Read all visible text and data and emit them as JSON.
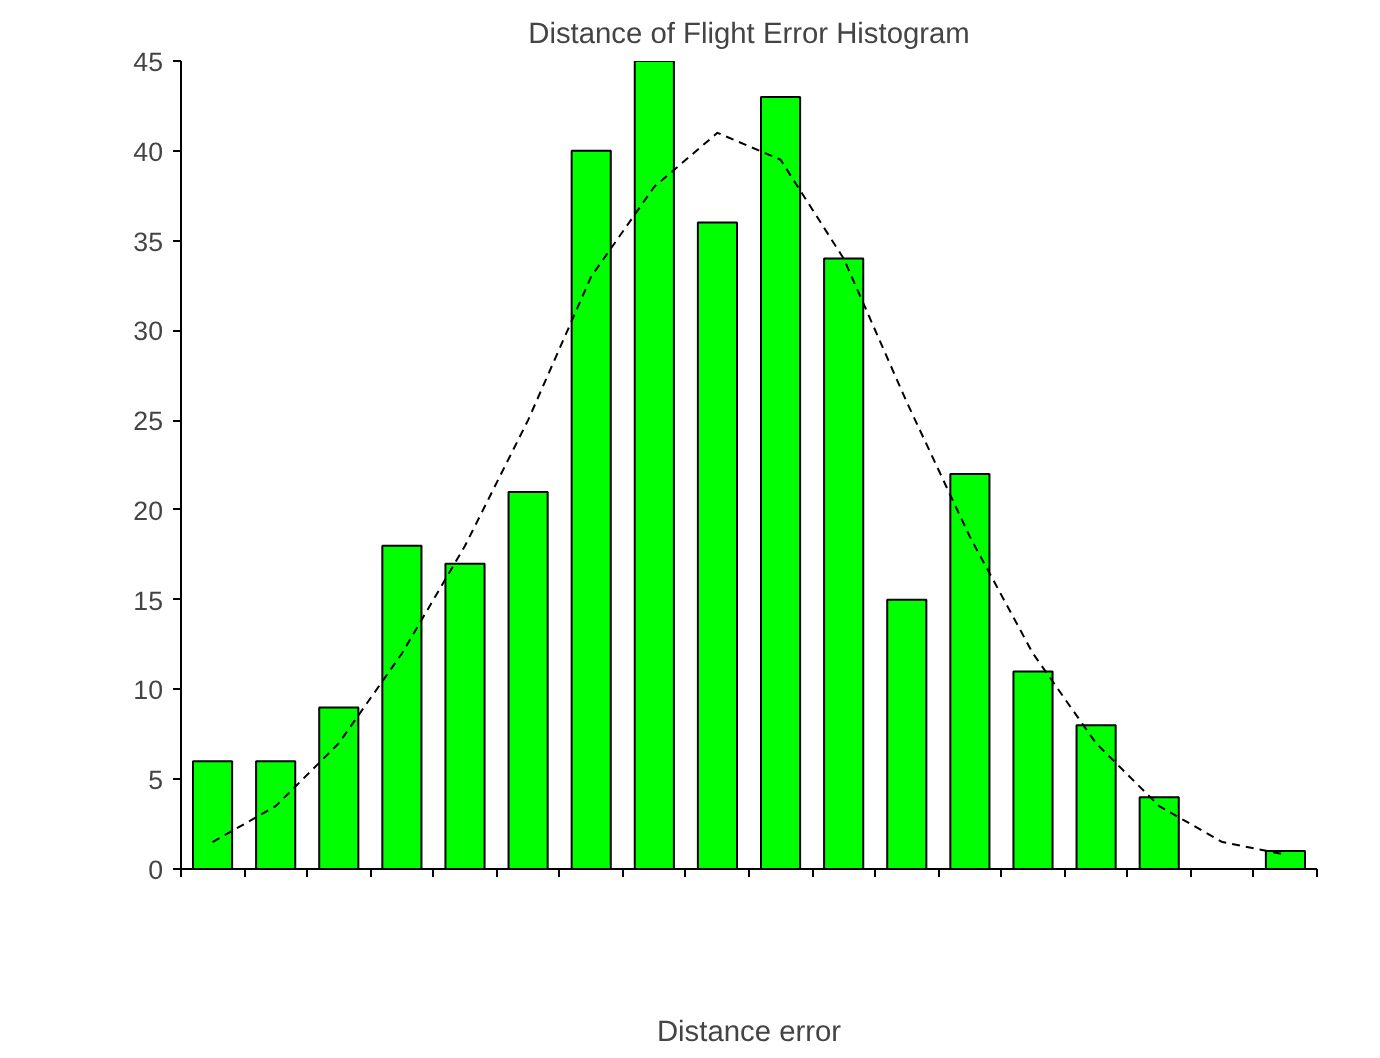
{
  "chart_data": {
    "type": "bar",
    "title": "Distance of Flight Error Histogram",
    "xlabel": "Distance error",
    "categories": [
      null,
      null,
      null,
      null,
      null,
      null,
      null,
      null,
      null,
      null,
      null,
      null,
      null,
      null,
      null,
      null,
      null,
      null
    ],
    "series": [
      {
        "color": "#00ff00",
        "values": [
          6,
          6,
          9,
          18,
          17,
          21,
          40,
          45,
          36,
          43,
          34,
          15,
          22,
          11,
          8,
          4,
          0,
          1
        ]
      },
      {
        "type": "line",
        "color": "#000000",
        "line_style": "dashed",
        "values": [
          1.5,
          3.5,
          7,
          12,
          18,
          25,
          33,
          38,
          41,
          39.5,
          34,
          26,
          18.5,
          12,
          7,
          3.5,
          1.5,
          0.8
        ]
      }
    ],
    "ylim": [
      0,
      45
    ],
    "yticks": [
      0,
      5,
      10,
      15,
      20,
      25,
      30,
      35,
      40,
      45
    ],
    "grid": false,
    "tick_labels": "y"
  }
}
